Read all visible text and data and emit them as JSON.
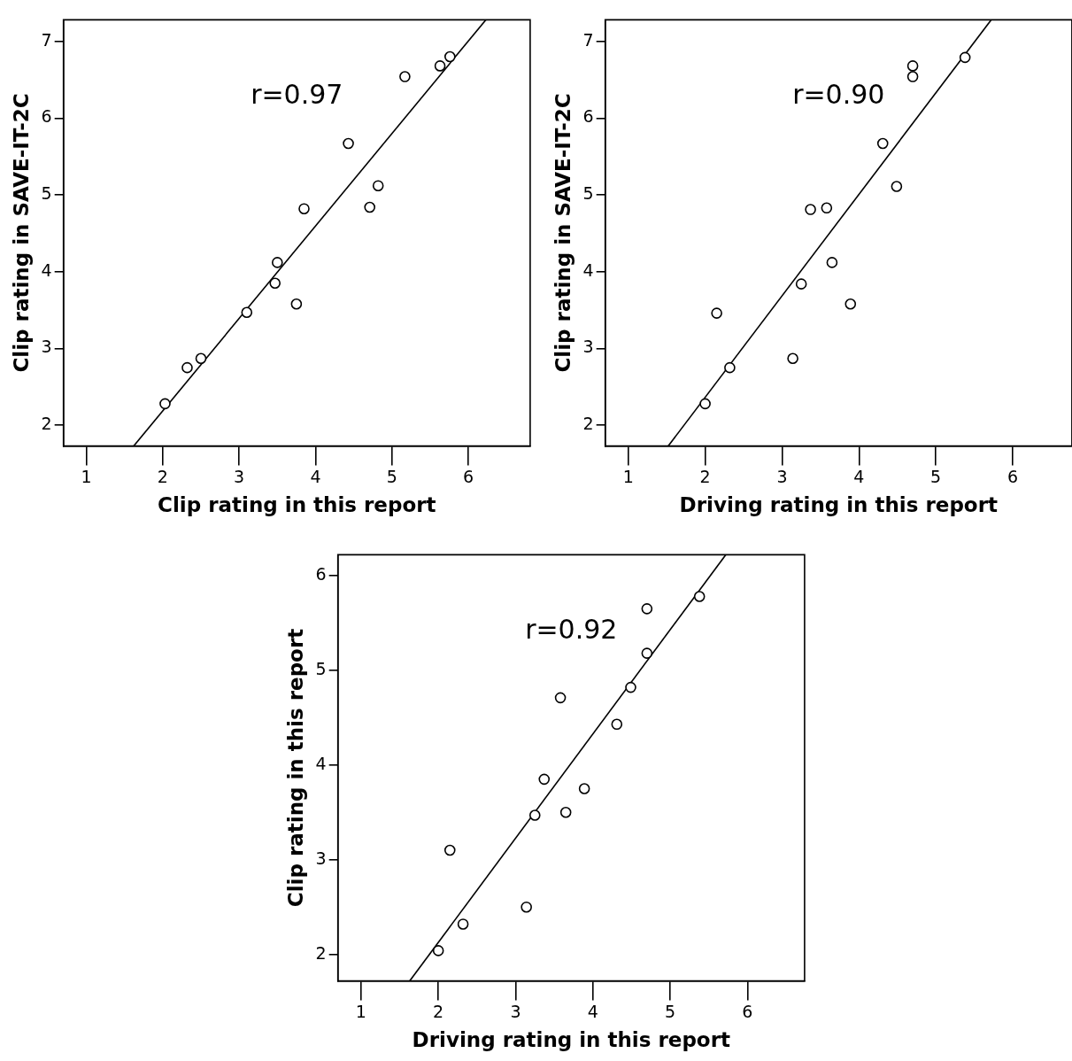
{
  "chart_data": [
    {
      "type": "scatter",
      "xlabel": "Clip rating in this report",
      "ylabel": "Clip rating in SAVE-IT-2C",
      "annotations": [
        "r=0.97"
      ],
      "xlim": [
        0.7,
        6.81
      ],
      "ylim": [
        1.73,
        7.28
      ],
      "xticks": [
        1,
        2,
        3,
        4,
        5,
        6
      ],
      "yticks": [
        2,
        3,
        4,
        5,
        6,
        7
      ],
      "grid": false,
      "legend": false,
      "series": [
        {
          "type": "scatter",
          "marker": "circle",
          "color": "#000000",
          "x": [
            2.03,
            2.32,
            2.5,
            3.1,
            3.47,
            3.5,
            3.75,
            3.85,
            4.43,
            4.71,
            4.82,
            5.17,
            5.63,
            5.76
          ],
          "values": [
            2.28,
            2.75,
            2.87,
            3.47,
            3.85,
            4.12,
            3.58,
            4.82,
            5.67,
            4.84,
            5.12,
            6.54,
            6.68,
            6.8
          ]
        },
        {
          "type": "line",
          "color": "#000000",
          "x": [
            1.62,
            6.23
          ],
          "values": [
            1.73,
            7.28
          ]
        }
      ]
    },
    {
      "type": "scatter",
      "xlabel": "Driving rating in this report",
      "ylabel": "Clip rating in SAVE-IT-2C",
      "annotations": [
        "r=0.90"
      ],
      "xlim": [
        0.7,
        6.77
      ],
      "ylim": [
        1.73,
        7.28
      ],
      "xticks": [
        1,
        2,
        3,
        4,
        5,
        6
      ],
      "yticks": [
        2,
        3,
        4,
        5,
        6,
        7
      ],
      "grid": false,
      "legend": false,
      "series": [
        {
          "type": "scatter",
          "marker": "circle",
          "color": "#000000",
          "x": [
            2.0,
            2.15,
            2.32,
            3.14,
            3.25,
            3.37,
            3.58,
            3.65,
            3.89,
            4.31,
            4.49,
            4.7,
            4.7,
            5.38
          ],
          "values": [
            2.28,
            3.46,
            2.75,
            2.87,
            3.84,
            4.81,
            4.83,
            4.12,
            3.58,
            5.67,
            5.11,
            6.54,
            6.68,
            6.79
          ]
        },
        {
          "type": "line",
          "color": "#000000",
          "x": [
            1.52,
            5.72
          ],
          "values": [
            1.73,
            7.28
          ]
        }
      ]
    },
    {
      "type": "scatter",
      "xlabel": "Driving rating in this report",
      "ylabel": "Clip rating in this report",
      "annotations": [
        "r=0.92"
      ],
      "xlim": [
        0.7,
        6.74
      ],
      "ylim": [
        1.72,
        6.22
      ],
      "xticks": [
        1,
        2,
        3,
        4,
        5,
        6
      ],
      "yticks": [
        2,
        3,
        4,
        5,
        6
      ],
      "grid": false,
      "legend": false,
      "series": [
        {
          "type": "scatter",
          "marker": "circle",
          "color": "#000000",
          "x": [
            2.0,
            2.15,
            2.32,
            3.14,
            3.25,
            3.37,
            3.58,
            3.65,
            3.89,
            4.31,
            4.49,
            4.7,
            4.7,
            5.38
          ],
          "values": [
            2.04,
            3.1,
            2.32,
            2.5,
            3.47,
            3.85,
            4.71,
            3.5,
            3.75,
            4.43,
            4.82,
            5.18,
            5.65,
            5.78
          ]
        },
        {
          "type": "line",
          "color": "#000000",
          "x": [
            1.63,
            5.72
          ],
          "values": [
            1.72,
            6.22
          ]
        }
      ]
    }
  ]
}
